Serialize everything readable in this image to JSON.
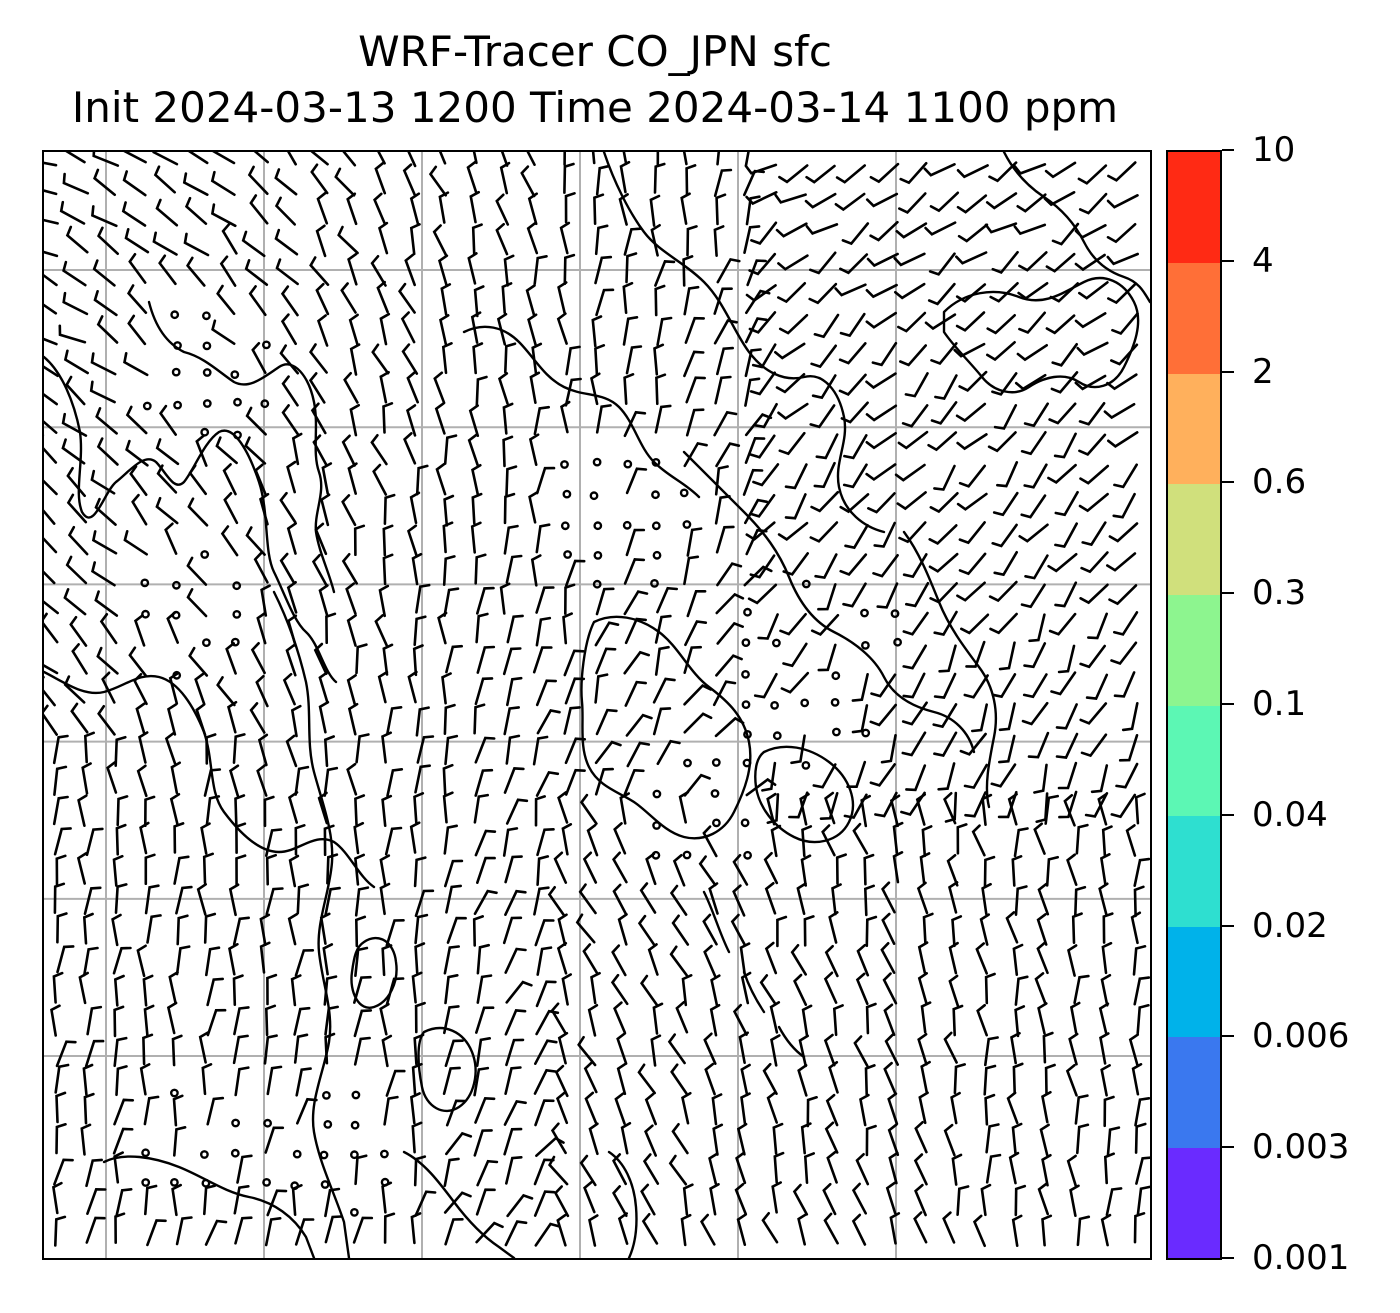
{
  "title": {
    "line1": "WRF-Tracer CO_JPN sfc",
    "line2": "Init 2024-03-13 1200 Time 2024-03-14 1100 ppm"
  },
  "map": {
    "graticule_cols": 7,
    "graticule_rows": 7,
    "gridline_color": "#b0b0b0",
    "barb_color": "#000000",
    "coastline_color": "#000000"
  },
  "colorbar": {
    "levels": [
      "0.001",
      "0.003",
      "0.006",
      "0.02",
      "0.04",
      "0.1",
      "0.3",
      "0.6",
      "2",
      "4",
      "10"
    ],
    "colors": [
      "#6a2bff",
      "#3a78ef",
      "#00b2ea",
      "#2edfd0",
      "#5cf7b4",
      "#8df58f",
      "#d0e07c",
      "#ffb05c",
      "#ff6f37",
      "#ff2a14"
    ]
  }
}
